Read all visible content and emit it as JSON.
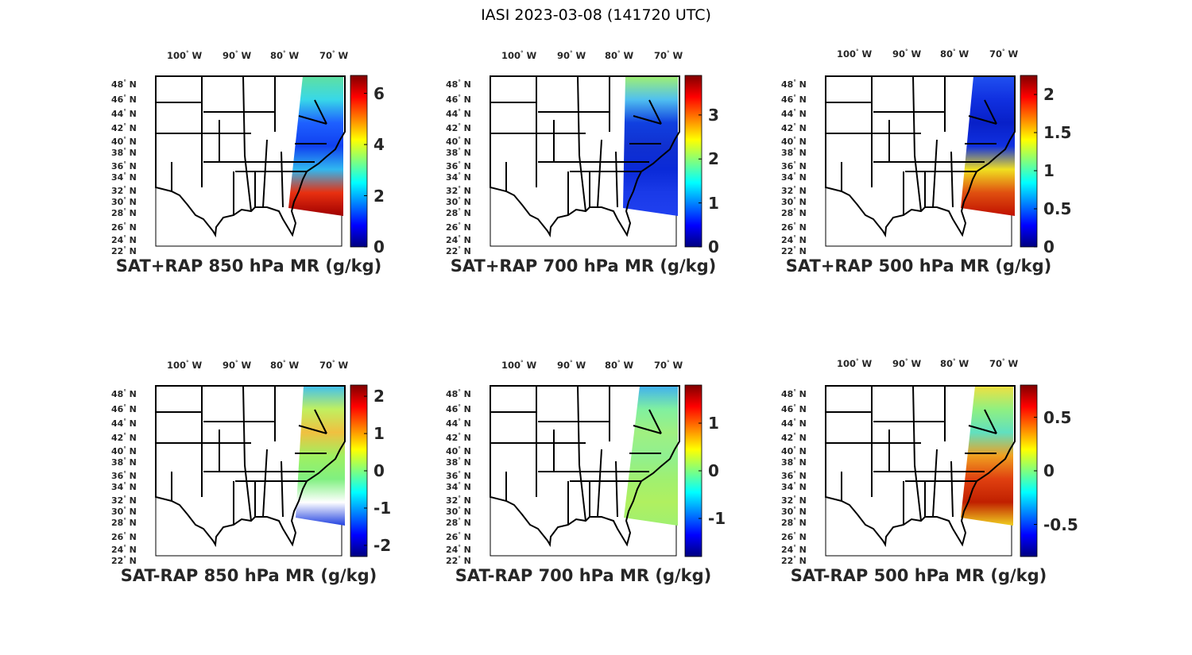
{
  "figure_title": "IASI 2023-03-08 (141720 UTC)",
  "chart_data": [
    {
      "type": "heatmap",
      "title": "SAT+RAP 850 hPa MR (g/kg)",
      "clim": [
        0,
        6.7
      ],
      "cbar_ticks": [
        "0",
        "2",
        "4",
        "6"
      ],
      "cbar_tick_values": [
        0,
        2,
        4,
        6
      ],
      "lon_ticks": [
        "100",
        "90",
        "80",
        "70"
      ],
      "lat_ticks": [
        "48",
        "46",
        "44",
        "42",
        "40",
        "38",
        "36",
        "34",
        "32",
        "30",
        "28",
        "26",
        "24",
        "22"
      ],
      "swath_colors": [
        "#5fe0a0",
        "#38d8e8",
        "#1e60ff",
        "#1040f0",
        "#30b8f0",
        "#e83010",
        "#a00000"
      ]
    },
    {
      "type": "heatmap",
      "title": "SAT+RAP 700 hPa MR (g/kg)",
      "clim": [
        0,
        3.9
      ],
      "cbar_ticks": [
        "0",
        "1",
        "2",
        "3"
      ],
      "cbar_tick_values": [
        0,
        1,
        2,
        3
      ],
      "lon_ticks": [
        "100",
        "90",
        "80",
        "70"
      ],
      "lat_ticks": [
        "48",
        "46",
        "44",
        "42",
        "40",
        "38",
        "36",
        "34",
        "32",
        "30",
        "28",
        "26",
        "24",
        "22"
      ],
      "swath_colors": [
        "#a0f070",
        "#50c0f0",
        "#1040e0",
        "#1030d0",
        "#0a2ad8",
        "#1a3ae8",
        "#2040f0"
      ]
    },
    {
      "type": "heatmap",
      "title": "SAT+RAP 500 hPa MR (g/kg)",
      "clim": [
        0,
        2.25
      ],
      "cbar_ticks": [
        "0",
        "0.5",
        "1",
        "1.5",
        "2"
      ],
      "cbar_tick_values": [
        0,
        0.5,
        1,
        1.5,
        2
      ],
      "lon_ticks": [
        "100",
        "90",
        "80",
        "70"
      ],
      "lat_ticks": [
        "48",
        "46",
        "44",
        "42",
        "40",
        "38",
        "36",
        "34",
        "32",
        "30",
        "28",
        "26",
        "24",
        "22"
      ],
      "swath_colors": [
        "#2050f0",
        "#1030e0",
        "#0820c8",
        "#1030e0",
        "#f0e020",
        "#e05010",
        "#c01000"
      ]
    },
    {
      "type": "heatmap",
      "title": "SAT-RAP 850 hPa MR (g/kg)",
      "clim": [
        -2.3,
        2.3
      ],
      "cbar_ticks": [
        "-2",
        "-1",
        "0",
        "1",
        "2"
      ],
      "cbar_tick_values": [
        -2,
        -1,
        0,
        1,
        2
      ],
      "lon_ticks": [
        "100",
        "90",
        "80",
        "70"
      ],
      "lat_ticks": [
        "48",
        "46",
        "44",
        "42",
        "40",
        "38",
        "36",
        "34",
        "32",
        "30",
        "28",
        "26",
        "24",
        "22"
      ],
      "swath_colors": [
        "#40c0f0",
        "#c0f060",
        "#f0c040",
        "#a0f060",
        "#80f080",
        "#ffffff",
        "#2040e0"
      ]
    },
    {
      "type": "heatmap",
      "title": "SAT-RAP 700 hPa MR (g/kg)",
      "clim": [
        -1.8,
        1.8
      ],
      "cbar_ticks": [
        "-1",
        "0",
        "1"
      ],
      "cbar_tick_values": [
        -1,
        0,
        1
      ],
      "lon_ticks": [
        "100",
        "90",
        "80",
        "70"
      ],
      "lat_ticks": [
        "48",
        "46",
        "44",
        "42",
        "40",
        "38",
        "36",
        "34",
        "32",
        "30",
        "28",
        "26",
        "24",
        "22"
      ],
      "swath_colors": [
        "#40b0f0",
        "#80f0a0",
        "#a0f080",
        "#90f090",
        "#a0f070",
        "#b0f060",
        "#a0f070"
      ]
    },
    {
      "type": "heatmap",
      "title": "SAT-RAP 500 hPa MR (g/kg)",
      "clim": [
        -0.8,
        0.8
      ],
      "cbar_ticks": [
        "-0.5",
        "0",
        "0.5"
      ],
      "cbar_tick_values": [
        -0.5,
        0,
        0.5
      ],
      "lon_ticks": [
        "100",
        "90",
        "80",
        "70"
      ],
      "lat_ticks": [
        "48",
        "46",
        "44",
        "42",
        "40",
        "38",
        "36",
        "34",
        "32",
        "30",
        "28",
        "26",
        "24",
        "22"
      ],
      "swath_colors": [
        "#f0e040",
        "#90f080",
        "#60e0c0",
        "#f0a020",
        "#e04010",
        "#c02000",
        "#f0d020"
      ]
    }
  ],
  "labels": {
    "deg_w": "W",
    "deg_n": "N"
  }
}
